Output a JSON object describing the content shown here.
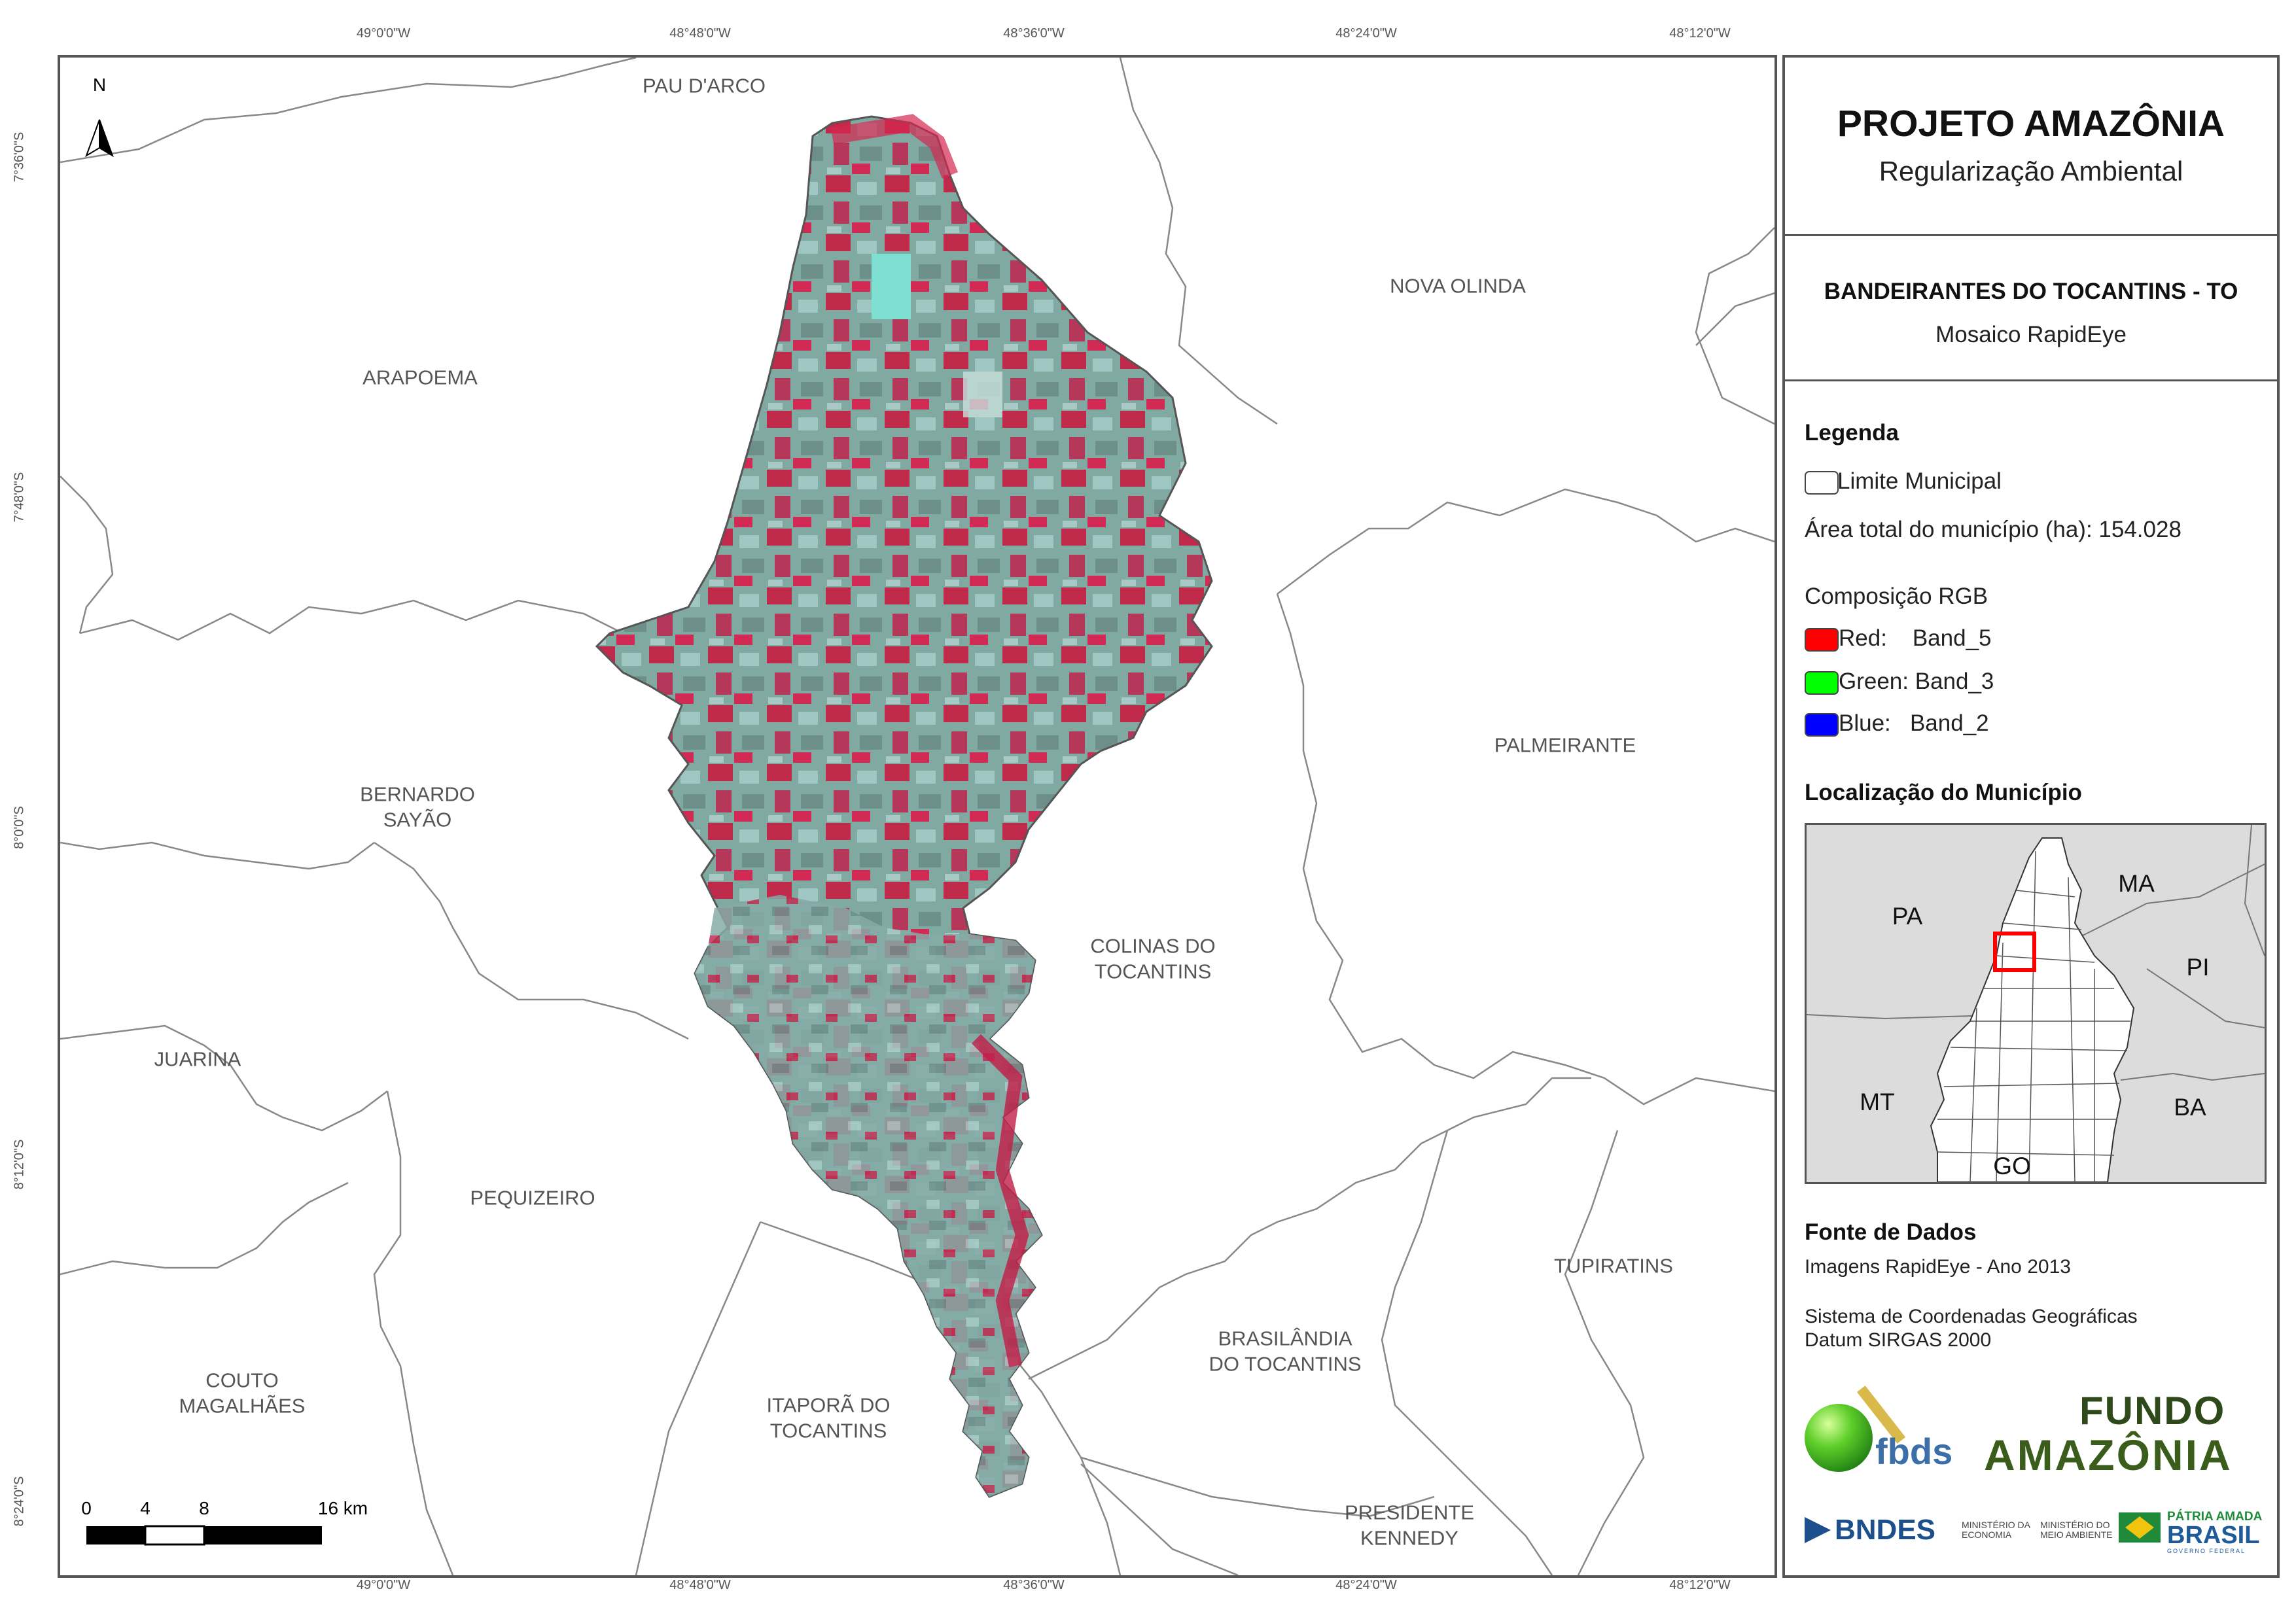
{
  "coordinates": {
    "top": [
      "49°0'0\"W",
      "48°48'0\"W",
      "48°36'0\"W",
      "48°24'0\"W",
      "48°12'0\"W"
    ],
    "bottom": [
      "49°0'0\"W",
      "48°48'0\"W",
      "48°36'0\"W",
      "48°24'0\"W",
      "48°12'0\"W"
    ],
    "left": [
      "7°36'0\"S",
      "7°48'0\"S",
      "8°0'0\"S",
      "8°12'0\"S",
      "8°24'0\"S"
    ]
  },
  "map": {
    "north_label": "N",
    "municipalities": {
      "pau_darco": "PAU D'ARCO",
      "nova_olinda": "NOVA OLINDA",
      "arapoema": "ARAPOEMA",
      "palmeirante": "PALMEIRANTE",
      "bernardo_sayao": "BERNARDO\nSAYÃO",
      "colinas": "COLINAS DO\nTOCANTINS",
      "juarina": "JUARINA",
      "pequizeiro": "PEQUIZEIRO",
      "tupiratins": "TUPIRATINS",
      "couto": "COUTO\nMAGALHÃES",
      "itapora": "ITAPORÃ DO\nTOCANTINS",
      "brasilandia": "BRASILÂNDIA\nDO TOCANTINS",
      "presidente": "PRESIDENTE\nKENNEDY"
    },
    "scale": {
      "labels": [
        "0",
        "4",
        "8",
        "16 km"
      ]
    }
  },
  "panel": {
    "title": "PROJETO AMAZÔNIA",
    "subtitle": "Regularização Ambiental",
    "municipality": "BANDEIRANTES DO TOCANTINS - TO",
    "mosaic": "Mosaico RapidEye",
    "legend_heading": "Legenda",
    "legend_limit": "Limite Municipal",
    "legend_area": "Área total do município (ha): 154.028",
    "rgb_heading": "Composição RGB",
    "rgb": [
      {
        "label": "Red:    Band_5",
        "color": "#ff0000"
      },
      {
        "label": "Green: Band_3",
        "color": "#00ff00"
      },
      {
        "label": "Blue:   Band_2",
        "color": "#0000ff"
      }
    ],
    "location_heading": "Localização do Município",
    "inset_labels": {
      "pa": "PA",
      "ma": "MA",
      "pi": "PI",
      "mt": "MT",
      "ba": "BA",
      "go": "GO"
    },
    "source_heading": "Fonte de Dados",
    "source_line1": "Imagens RapidEye - Ano 2013",
    "source_line2": "Sistema de Coordenadas Geográficas",
    "source_line3": "Datum SIRGAS 2000"
  },
  "logos": {
    "fbds": "fbds",
    "fundo_line1": "FUNDO",
    "fundo_line2": "AMAZÔNIA",
    "bndes": "BNDES",
    "ministerio_economia": "MINISTÉRIO DA\nECONOMIA",
    "ministerio_meio": "MINISTÉRIO DO\nMEIO AMBIENTE",
    "patria_amada": "PÁTRIA AMADA",
    "brasil": "BRASIL",
    "governo_federal": "GOVERNO FEDERAL"
  }
}
